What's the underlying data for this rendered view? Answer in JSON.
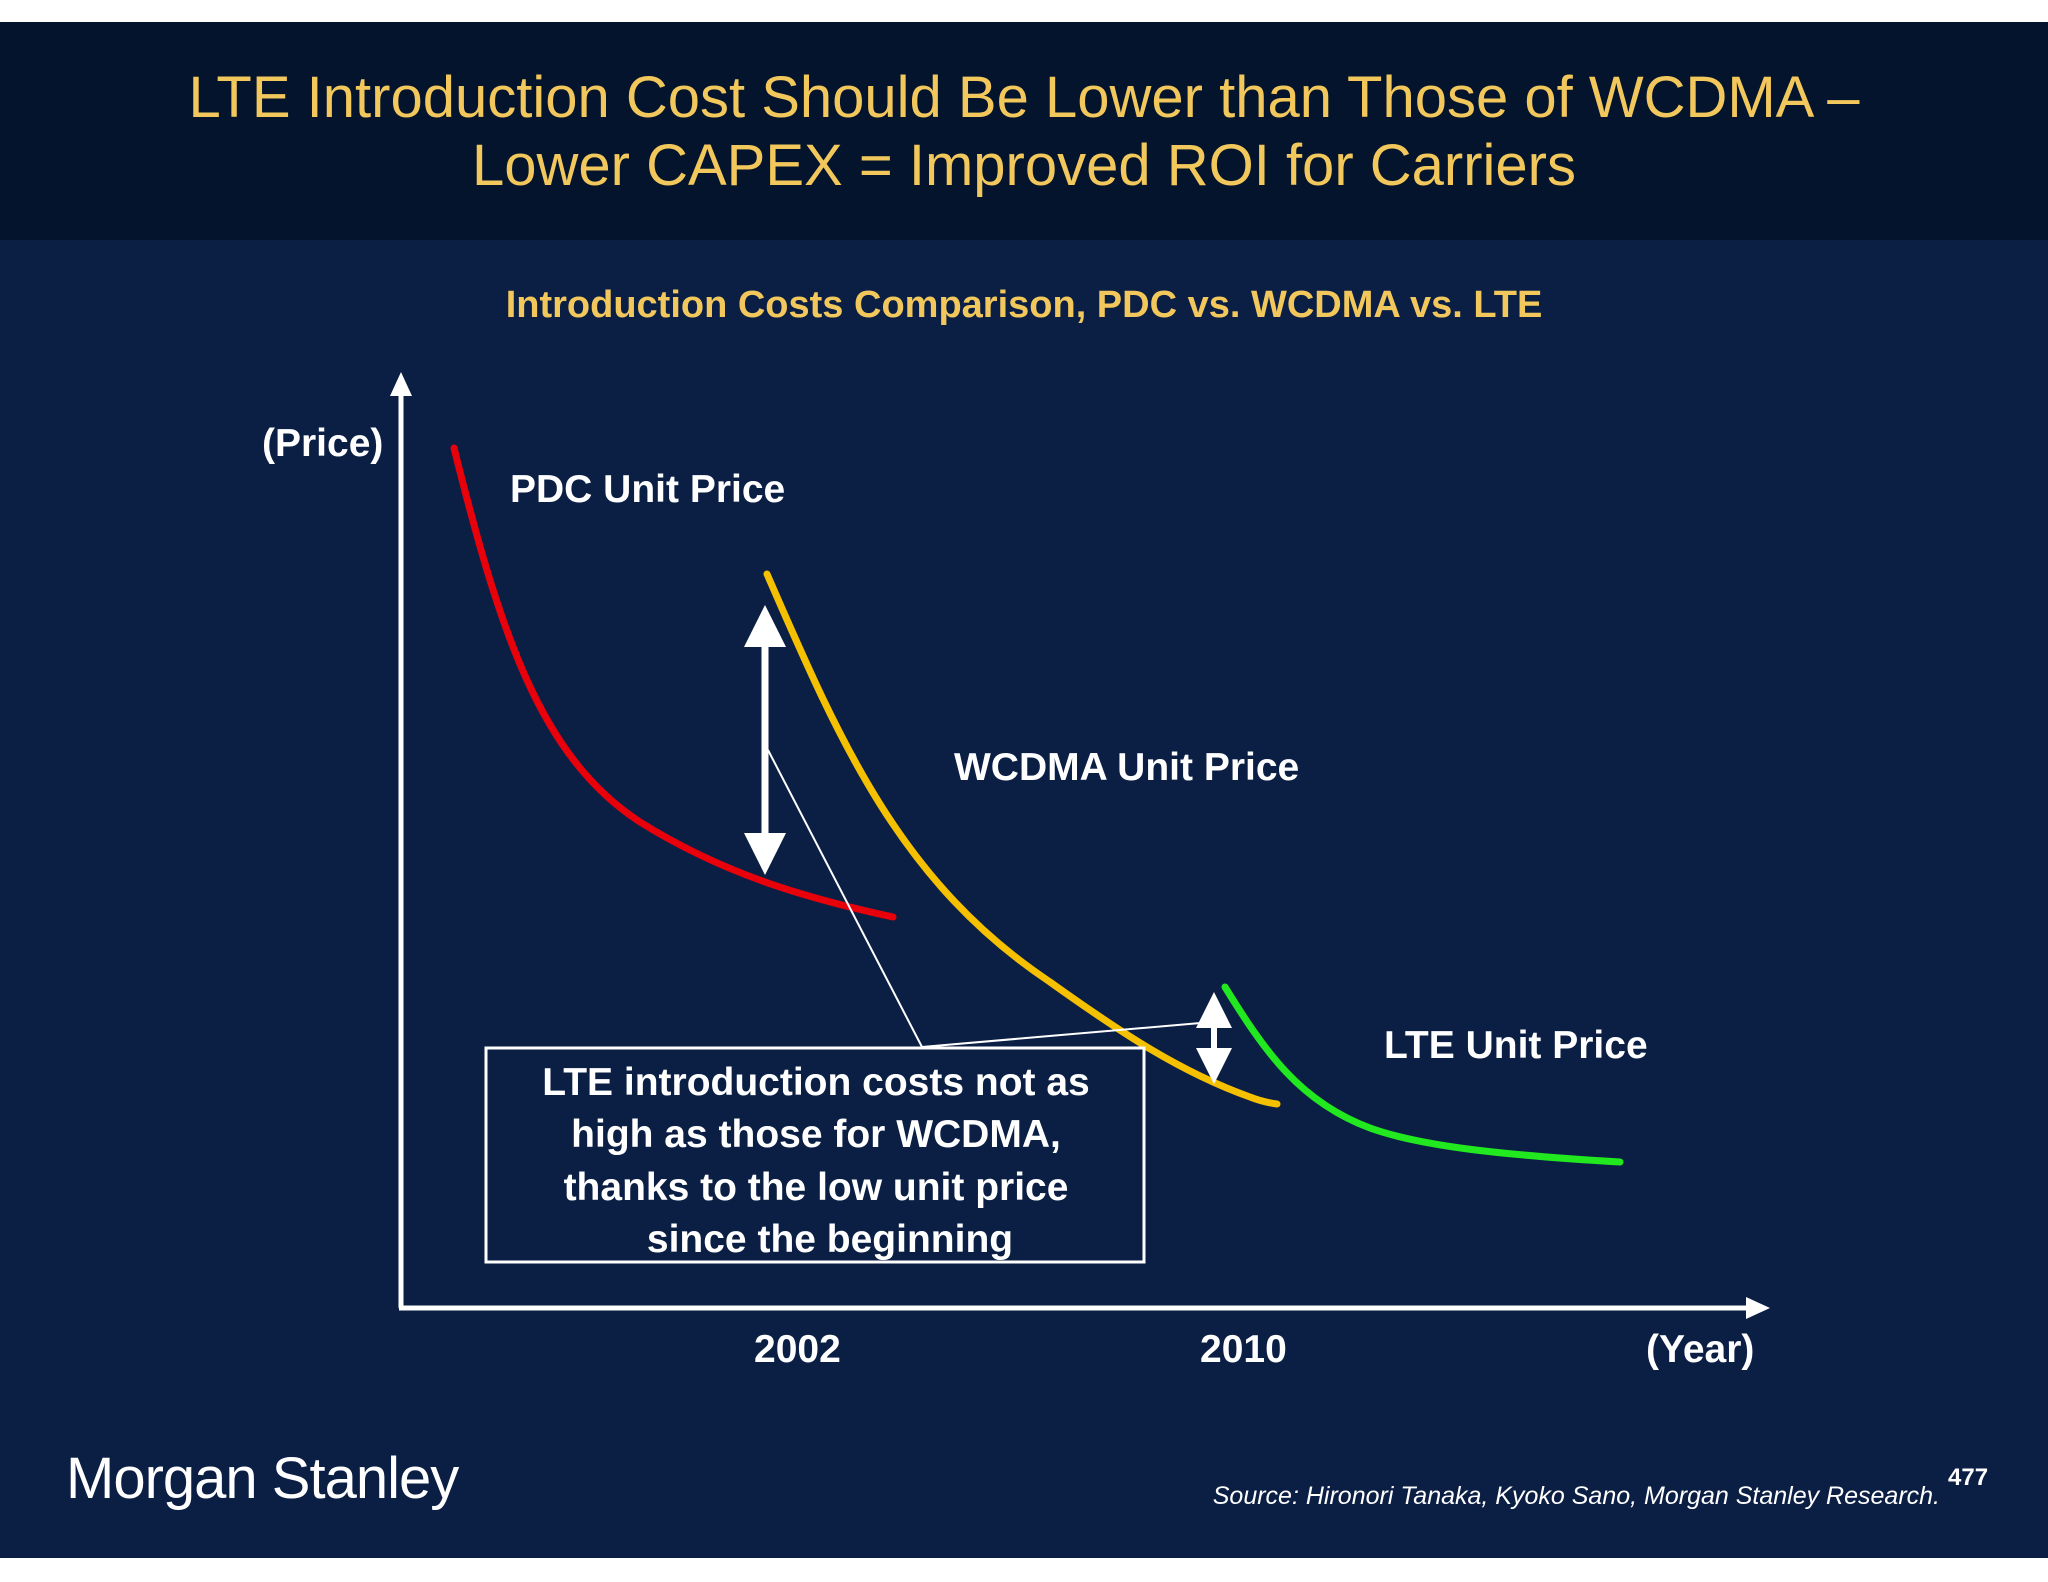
{
  "slide": {
    "title_line1": "LTE Introduction Cost Should Be Lower than Those of WCDMA –",
    "title_line2": "Lower CAPEX = Improved ROI for Carriers",
    "source": "Source: Hironori Tanaka, Kyoko Sano, Morgan Stanley Research.",
    "page_number": "477",
    "logo_text": "Morgan Stanley"
  },
  "chart_data": {
    "type": "line",
    "title": "Introduction Costs Comparison, PDC vs. WCDMA vs. LTE",
    "ylabel": "(Price)",
    "xlabel": "(Year)",
    "x_ticks": [
      "2002",
      "2010"
    ],
    "series": [
      {
        "name": "PDC Unit Price",
        "color": "#e8000b"
      },
      {
        "name": "WCDMA Unit Price",
        "color": "#f5c000"
      },
      {
        "name": "LTE Unit Price",
        "color": "#21e81f"
      }
    ],
    "annotations": [
      "LTE introduction costs not as",
      "high as those for WCDMA,",
      "thanks to the low unit price",
      "since the beginning"
    ],
    "grid": false,
    "legend": "none",
    "colors": {
      "background": "#0b1f45",
      "title_band": "#04142d",
      "title_text": "#f2c75c",
      "axis": "#ffffff"
    }
  }
}
